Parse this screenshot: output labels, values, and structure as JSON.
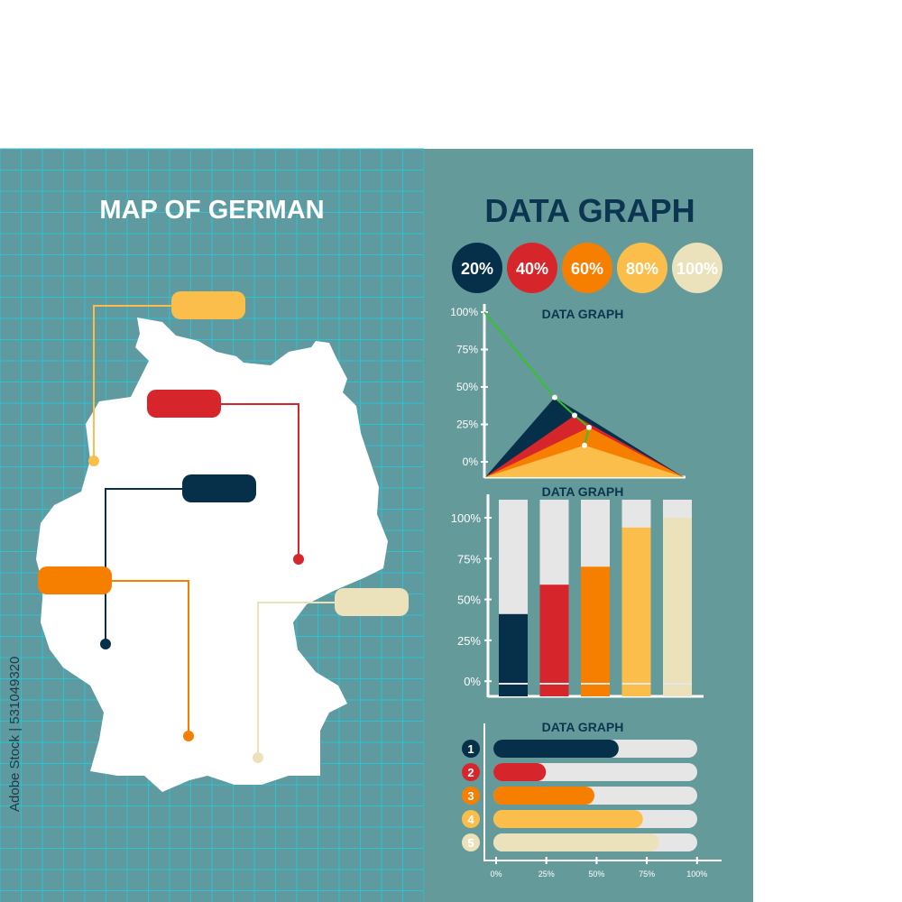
{
  "colors": {
    "navy": "#062f49",
    "red": "#d6262b",
    "orange": "#f77f00",
    "yellow": "#fcbe4a",
    "beige": "#ebe2bc",
    "gray": "#e6e6e6",
    "panel_left": "#5e9aa0",
    "panel_right": "#659a9b",
    "grid": "#2cc3d1",
    "title_dark": "#0c3550",
    "green": "#33c42a"
  },
  "map": {
    "title": "MAP OF GERMAN",
    "callouts": [
      "yellow",
      "red",
      "navy",
      "orange",
      "beige"
    ]
  },
  "right": {
    "title": "DATA GRAPH",
    "legend": [
      {
        "label": "20%",
        "color": "navy"
      },
      {
        "label": "40%",
        "color": "red"
      },
      {
        "label": "60%",
        "color": "orange"
      },
      {
        "label": "80%",
        "color": "yellow"
      },
      {
        "label": "100%",
        "color": "beige"
      }
    ]
  },
  "watermark": "Adobe Stock | 531049320",
  "chart_data": [
    {
      "type": "area",
      "title": "DATA GRAPH",
      "yticks": [
        "100%",
        "75%",
        "50%",
        "25%",
        "0%"
      ],
      "ylim": [
        0,
        100
      ],
      "series": [
        {
          "color": "navy",
          "peak": 43
        },
        {
          "color": "red",
          "peak": 31
        },
        {
          "color": "orange",
          "peak": 23
        },
        {
          "color": "yellow",
          "peak": 11
        }
      ],
      "line": {
        "color": "green",
        "values": [
          100,
          43,
          31,
          23,
          11
        ]
      }
    },
    {
      "type": "bar",
      "title": "DATA GRAPH",
      "yticks": [
        "100%",
        "75%",
        "50%",
        "25%",
        "0%"
      ],
      "ylim": [
        0,
        100
      ],
      "series": [
        {
          "color": "navy",
          "value": 41
        },
        {
          "color": "red",
          "value": 59
        },
        {
          "color": "orange",
          "value": 70
        },
        {
          "color": "yellow",
          "value": 94
        },
        {
          "color": "beige",
          "value": 100
        }
      ]
    },
    {
      "type": "bar",
      "orientation": "horizontal",
      "title": "DATA GRAPH",
      "xticks": [
        "0%",
        "25%",
        "50%",
        "75%",
        "100%"
      ],
      "xlim": [
        0,
        100
      ],
      "categories": [
        "1",
        "2",
        "3",
        "4",
        "5"
      ],
      "series": [
        {
          "color": "navy",
          "value": 62
        },
        {
          "color": "red",
          "value": 26
        },
        {
          "color": "orange",
          "value": 50
        },
        {
          "color": "yellow",
          "value": 74
        },
        {
          "color": "beige",
          "value": 82
        }
      ]
    }
  ]
}
